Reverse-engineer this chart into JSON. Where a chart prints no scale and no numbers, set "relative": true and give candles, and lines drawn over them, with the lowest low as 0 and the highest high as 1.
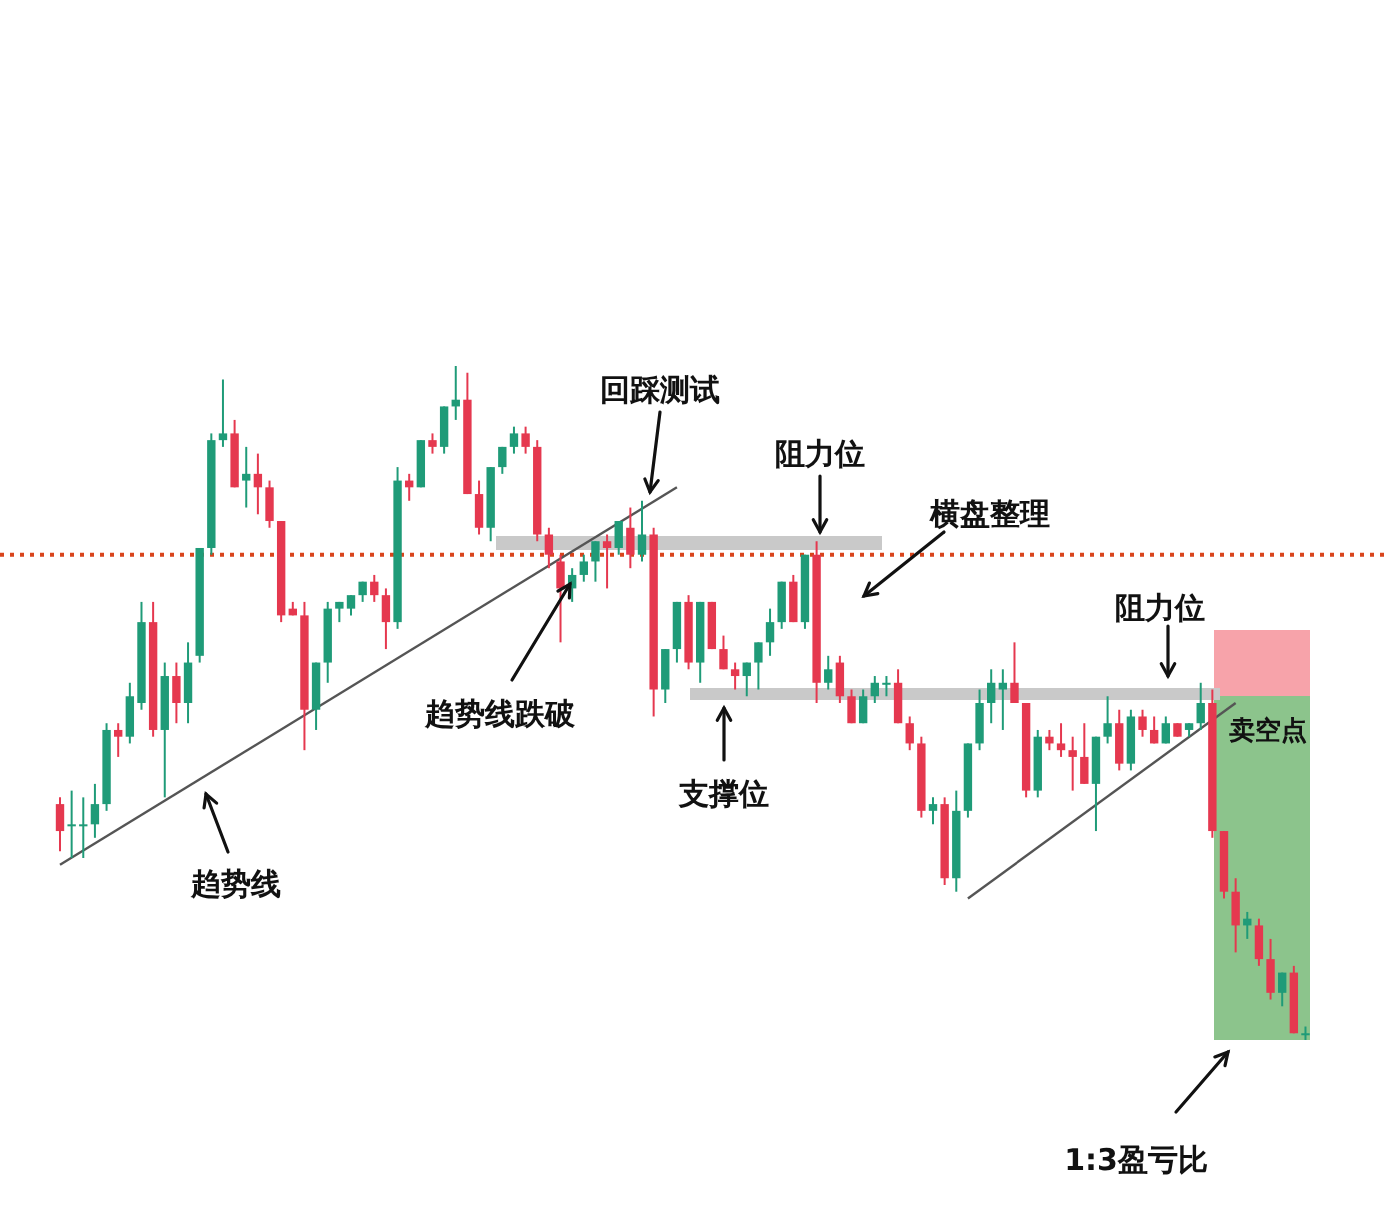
{
  "chart_data": {
    "type": "candlestick",
    "relative": true,
    "categories": [
      null,
      null,
      null,
      null,
      null,
      null,
      null,
      null,
      null,
      null,
      null,
      null,
      null,
      null,
      null,
      null,
      null,
      null,
      null,
      null,
      null,
      null,
      null,
      null,
      null,
      null,
      null,
      null,
      null,
      null,
      null,
      null,
      null,
      null,
      null,
      null,
      null,
      null,
      null,
      null,
      null,
      null,
      null,
      null,
      null,
      null,
      null,
      null,
      null,
      null,
      null,
      null,
      null,
      null,
      null,
      null,
      null,
      null,
      null,
      null,
      null,
      null,
      null,
      null,
      null,
      null,
      null,
      null,
      null,
      null,
      null,
      null,
      null,
      null,
      null,
      null,
      null,
      null,
      null,
      null,
      null,
      null,
      null,
      null,
      null,
      null,
      null,
      null,
      null,
      null,
      null,
      null,
      null,
      null,
      null,
      null,
      null,
      null,
      null,
      null,
      null,
      null,
      null,
      null,
      null,
      null,
      null,
      null
    ],
    "ohlc": [
      [
        0.35,
        0.36,
        0.28,
        0.31
      ],
      [
        0.32,
        0.37,
        0.27,
        0.32
      ],
      [
        0.32,
        0.36,
        0.27,
        0.32
      ],
      [
        0.32,
        0.38,
        0.3,
        0.35
      ],
      [
        0.35,
        0.47,
        0.34,
        0.46
      ],
      [
        0.46,
        0.47,
        0.42,
        0.45
      ],
      [
        0.45,
        0.53,
        0.44,
        0.51
      ],
      [
        0.5,
        0.65,
        0.49,
        0.62
      ],
      [
        0.62,
        0.65,
        0.45,
        0.46
      ],
      [
        0.46,
        0.56,
        0.36,
        0.54
      ],
      [
        0.54,
        0.56,
        0.47,
        0.5
      ],
      [
        0.5,
        0.59,
        0.47,
        0.56
      ],
      [
        0.57,
        0.73,
        0.56,
        0.73
      ],
      [
        0.73,
        0.9,
        0.72,
        0.89
      ],
      [
        0.89,
        0.98,
        0.88,
        0.9
      ],
      [
        0.9,
        0.92,
        0.82,
        0.82
      ],
      [
        0.83,
        0.88,
        0.79,
        0.84
      ],
      [
        0.84,
        0.87,
        0.78,
        0.82
      ],
      [
        0.82,
        0.83,
        0.76,
        0.77
      ],
      [
        0.77,
        0.77,
        0.62,
        0.63
      ],
      [
        0.64,
        0.65,
        0.63,
        0.63
      ],
      [
        0.63,
        0.65,
        0.43,
        0.49
      ],
      [
        0.49,
        0.56,
        0.46,
        0.56
      ],
      [
        0.56,
        0.65,
        0.53,
        0.64
      ],
      [
        0.64,
        0.65,
        0.62,
        0.65
      ],
      [
        0.64,
        0.66,
        0.63,
        0.66
      ],
      [
        0.66,
        0.68,
        0.65,
        0.68
      ],
      [
        0.68,
        0.69,
        0.65,
        0.66
      ],
      [
        0.66,
        0.67,
        0.58,
        0.62
      ],
      [
        0.62,
        0.85,
        0.61,
        0.83
      ],
      [
        0.83,
        0.84,
        0.8,
        0.82
      ],
      [
        0.82,
        0.89,
        0.82,
        0.89
      ],
      [
        0.89,
        0.9,
        0.87,
        0.88
      ],
      [
        0.88,
        0.94,
        0.87,
        0.94
      ],
      [
        0.94,
        1,
        0.92,
        0.95
      ],
      [
        0.95,
        0.99,
        0.81,
        0.81
      ],
      [
        0.81,
        0.83,
        0.75,
        0.76
      ],
      [
        0.76,
        0.85,
        0.74,
        0.85
      ],
      [
        0.85,
        0.88,
        0.84,
        0.88
      ],
      [
        0.88,
        0.91,
        0.87,
        0.9
      ],
      [
        0.9,
        0.91,
        0.87,
        0.88
      ],
      [
        0.88,
        0.89,
        0.74,
        0.75
      ],
      [
        0.75,
        0.76,
        0.7,
        0.72
      ],
      [
        0.71,
        0.72,
        0.59,
        0.67
      ],
      [
        0.67,
        0.7,
        0.65,
        0.69
      ],
      [
        0.69,
        0.72,
        0.68,
        0.71
      ],
      [
        0.71,
        0.74,
        0.68,
        0.74
      ],
      [
        0.74,
        0.75,
        0.67,
        0.73
      ],
      [
        0.73,
        0.77,
        0.72,
        0.77
      ],
      [
        0.76,
        0.79,
        0.7,
        0.72
      ],
      [
        0.72,
        0.8,
        0.71,
        0.75
      ],
      [
        0.75,
        0.76,
        0.48,
        0.52
      ],
      [
        0.52,
        0.58,
        0.5,
        0.58
      ],
      [
        0.58,
        0.65,
        0.56,
        0.65
      ],
      [
        0.65,
        0.66,
        0.55,
        0.56
      ],
      [
        0.56,
        0.65,
        0.53,
        0.65
      ],
      [
        0.65,
        0.65,
        0.58,
        0.58
      ],
      [
        0.58,
        0.6,
        0.55,
        0.55
      ],
      [
        0.55,
        0.56,
        0.52,
        0.54
      ],
      [
        0.54,
        0.56,
        0.51,
        0.56
      ],
      [
        0.56,
        0.59,
        0.52,
        0.59
      ],
      [
        0.59,
        0.64,
        0.57,
        0.62
      ],
      [
        0.62,
        0.68,
        0.61,
        0.68
      ],
      [
        0.68,
        0.69,
        0.62,
        0.62
      ],
      [
        0.62,
        0.72,
        0.61,
        0.72
      ],
      [
        0.72,
        0.74,
        0.5,
        0.53
      ],
      [
        0.53,
        0.57,
        0.52,
        0.55
      ],
      [
        0.56,
        0.57,
        0.5,
        0.51
      ],
      [
        0.51,
        0.52,
        0.47,
        0.47
      ],
      [
        0.47,
        0.52,
        0.47,
        0.51
      ],
      [
        0.51,
        0.54,
        0.5,
        0.53
      ],
      [
        0.53,
        0.54,
        0.51,
        0.53
      ],
      [
        0.53,
        0.55,
        0.47,
        0.47
      ],
      [
        0.47,
        0.48,
        0.43,
        0.44
      ],
      [
        0.44,
        0.45,
        0.33,
        0.34
      ],
      [
        0.34,
        0.36,
        0.32,
        0.35
      ],
      [
        0.35,
        0.36,
        0.23,
        0.24
      ],
      [
        0.24,
        0.37,
        0.22,
        0.34
      ],
      [
        0.34,
        0.44,
        0.33,
        0.44
      ],
      [
        0.44,
        0.52,
        0.43,
        0.5
      ],
      [
        0.5,
        0.55,
        0.47,
        0.53
      ],
      [
        0.52,
        0.55,
        0.46,
        0.53
      ],
      [
        0.53,
        0.59,
        0.5,
        0.5
      ],
      [
        0.5,
        0.5,
        0.36,
        0.37
      ],
      [
        0.37,
        0.46,
        0.36,
        0.45
      ],
      [
        0.45,
        0.46,
        0.43,
        0.44
      ],
      [
        0.44,
        0.47,
        0.42,
        0.43
      ],
      [
        0.43,
        0.45,
        0.37,
        0.42
      ],
      [
        0.42,
        0.47,
        0.38,
        0.38
      ],
      [
        0.38,
        0.45,
        0.31,
        0.45
      ],
      [
        0.45,
        0.51,
        0.44,
        0.47
      ],
      [
        0.47,
        0.49,
        0.4,
        0.41
      ],
      [
        0.41,
        0.49,
        0.4,
        0.48
      ],
      [
        0.48,
        0.49,
        0.45,
        0.46
      ],
      [
        0.46,
        0.48,
        0.44,
        0.44
      ],
      [
        0.44,
        0.48,
        0.44,
        0.47
      ],
      [
        0.47,
        0.47,
        0.45,
        0.45
      ],
      [
        0.46,
        0.47,
        0.45,
        0.47
      ],
      [
        0.47,
        0.53,
        0.46,
        0.5
      ],
      [
        0.5,
        0.52,
        0.3,
        0.31
      ],
      [
        0.31,
        0.31,
        0.21,
        0.22
      ],
      [
        0.22,
        0.24,
        0.13,
        0.17
      ],
      [
        0.17,
        0.19,
        0.15,
        0.18
      ],
      [
        0.17,
        0.18,
        0.11,
        0.12
      ],
      [
        0.12,
        0.15,
        0.06,
        0.07
      ],
      [
        0.07,
        0.1,
        0.05,
        0.1
      ],
      [
        0.1,
        0.11,
        0.01,
        0.01
      ],
      [
        0.01,
        0.02,
        0,
        0.01
      ]
    ],
    "series": [
      {
        "type": "line",
        "color": "#555555",
        "values": [
          0.26,
          null,
          null,
          null,
          null,
          null,
          null,
          null,
          null,
          null,
          null,
          null,
          null,
          null,
          null,
          null,
          null,
          null,
          null,
          null,
          null,
          null,
          null,
          null,
          null,
          null,
          null,
          null,
          null,
          null,
          null,
          null,
          null,
          null,
          null,
          null,
          null,
          null,
          null,
          null,
          null,
          null,
          null,
          null,
          null,
          null,
          null,
          null,
          null,
          null,
          null,
          null,
          null,
          0.82,
          null,
          null,
          null,
          null,
          null,
          null,
          null,
          null,
          null,
          null,
          null,
          null,
          null,
          null,
          null,
          null,
          null,
          null,
          null,
          null,
          null,
          null,
          null,
          null,
          null,
          null,
          null,
          null,
          null,
          null,
          null,
          null,
          null,
          null,
          null,
          null,
          null,
          null,
          null,
          null,
          null,
          null,
          null,
          null,
          null,
          null,
          null,
          null,
          null,
          null,
          null,
          null,
          null,
          null
        ]
      },
      {
        "type": "line",
        "color": "#555555",
        "values": [
          null,
          null,
          null,
          null,
          null,
          null,
          null,
          null,
          null,
          null,
          null,
          null,
          null,
          null,
          null,
          null,
          null,
          null,
          null,
          null,
          null,
          null,
          null,
          null,
          null,
          null,
          null,
          null,
          null,
          null,
          null,
          null,
          null,
          null,
          null,
          null,
          null,
          null,
          null,
          null,
          null,
          null,
          null,
          null,
          null,
          null,
          null,
          null,
          null,
          null,
          null,
          null,
          null,
          null,
          null,
          null,
          null,
          null,
          null,
          null,
          null,
          null,
          null,
          null,
          null,
          null,
          null,
          null,
          null,
          null,
          null,
          null,
          null,
          null,
          null,
          null,
          null,
          null,
          0.21,
          null,
          null,
          null,
          null,
          null,
          null,
          null,
          null,
          null,
          null,
          null,
          null,
          null,
          null,
          null,
          null,
          null,
          null,
          null,
          null,
          null,
          null,
          0.5,
          null,
          null,
          null,
          null,
          null,
          null
        ]
      }
    ],
    "ref_lines": [
      {
        "axis": "y",
        "value": 0.72,
        "color": "#d9441c",
        "line_style": "dotted"
      }
    ],
    "annotations": [
      "回踩测试",
      "阻力位",
      "横盘整理",
      "趋势线跌破",
      "支撑位",
      "趋势线",
      "阻力位",
      "卖空点",
      "1:3盈亏比"
    ]
  }
}
